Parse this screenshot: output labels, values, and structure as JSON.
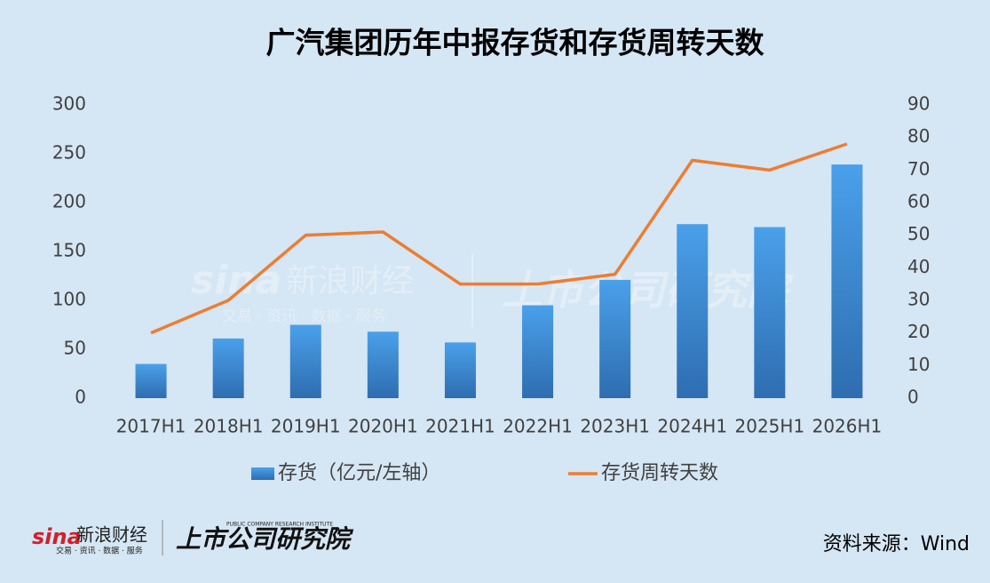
{
  "chart_data": {
    "type": "bar_line",
    "title": "广汽集团历年中报存货和存货周转天数",
    "categories": [
      "2017H1",
      "2018H1",
      "2019H1",
      "2020H1",
      "2021H1",
      "2022H1",
      "2023H1",
      "2024H1",
      "2025H1",
      "2026H1"
    ],
    "series": [
      {
        "name": "存货（亿元/左轴）",
        "type": "bar",
        "color": "#3f8fd8",
        "values": [
          35,
          61,
          75,
          68,
          57,
          95,
          121,
          178,
          175,
          239
        ]
      },
      {
        "name": "存货周转天数",
        "type": "line",
        "axis": "y2",
        "color": "#ed7d31",
        "values": [
          20,
          30,
          50,
          51,
          35,
          35,
          38,
          73,
          70,
          78
        ]
      }
    ],
    "ylim": [
      0,
      300
    ],
    "yticks": [
      0,
      50,
      100,
      150,
      200,
      250,
      300
    ],
    "y2lim": [
      0,
      90
    ],
    "y2ticks": [
      0,
      10,
      20,
      30,
      40,
      50,
      60,
      70,
      80,
      90
    ],
    "grid": false,
    "legend": "bottom"
  },
  "footer": {
    "sina_mark": "sina",
    "sina_name": "新浪财经",
    "sina_tagline": "交易 · 资讯 · 数据 · 服务",
    "institute": "上市公司研究院",
    "institute_en": "PUBLIC COMPANY RESEARCH INSTITUTE",
    "source": "资料来源：Wind"
  }
}
